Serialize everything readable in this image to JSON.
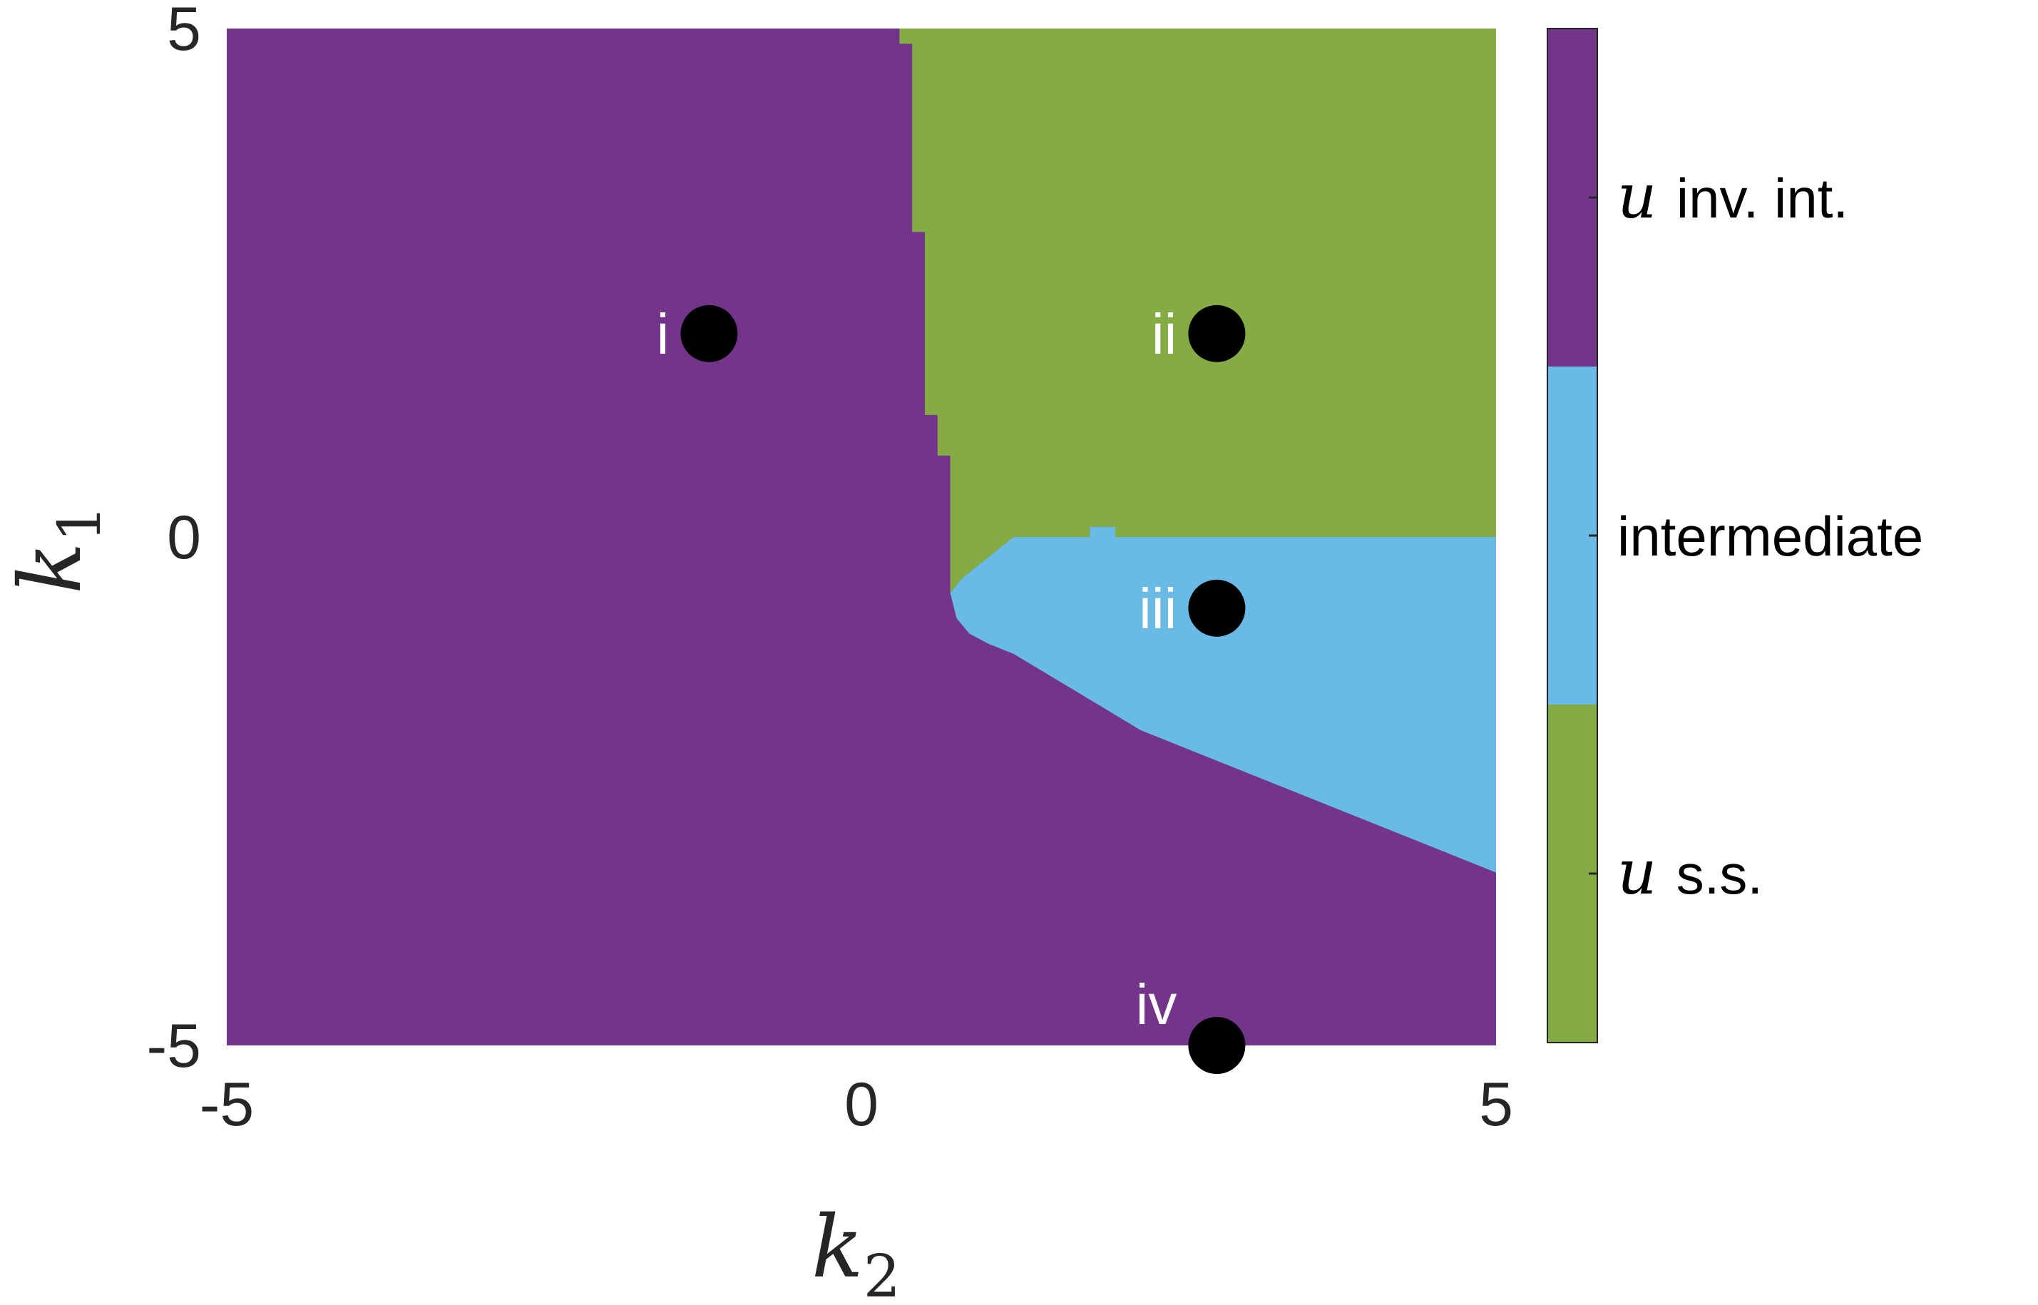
{
  "chart_data": {
    "type": "heatmap",
    "title": "",
    "xlabel": {
      "symbol": "k",
      "sub": "2"
    },
    "ylabel": {
      "symbol": "k",
      "sub": "1"
    },
    "xlim": [
      -5,
      5
    ],
    "ylim": [
      -5,
      5
    ],
    "xticks": [
      "-5",
      "0",
      "5"
    ],
    "yticks": [
      "-5",
      "0",
      "5"
    ],
    "regions": [
      {
        "name": "u inv. int.",
        "color": "#72358a"
      },
      {
        "name": "intermediate",
        "color": "#6abae6"
      },
      {
        "name": "u s.s.",
        "color": "#85ab45"
      }
    ],
    "green_boundary": [
      [
        0.3,
        5.0
      ],
      [
        0.3,
        4.85
      ],
      [
        0.4,
        4.85
      ],
      [
        0.4,
        3.0
      ],
      [
        0.5,
        3.0
      ],
      [
        0.5,
        1.2
      ],
      [
        0.6,
        1.2
      ],
      [
        0.6,
        0.8
      ],
      [
        0.7,
        0.8
      ],
      [
        0.7,
        -0.55
      ],
      [
        0.7,
        -0.55
      ]
    ],
    "cyan_top_edge": [
      [
        0.7,
        -0.55
      ],
      [
        0.8,
        -0.4
      ],
      [
        0.9,
        -0.3
      ],
      [
        1.0,
        -0.2
      ],
      [
        1.1,
        -0.1
      ],
      [
        1.2,
        0.0
      ],
      [
        1.8,
        0.0
      ],
      [
        1.8,
        0.1
      ],
      [
        2.0,
        0.1
      ],
      [
        2.0,
        0.0
      ],
      [
        5.0,
        0.0
      ]
    ],
    "cyan_bottom_edge": [
      [
        0.7,
        -0.55
      ],
      [
        0.75,
        -0.8
      ],
      [
        0.85,
        -0.95
      ],
      [
        1.0,
        -1.05
      ],
      [
        1.2,
        -1.15
      ],
      [
        1.4,
        -1.3
      ],
      [
        1.6,
        -1.45
      ],
      [
        1.8,
        -1.6
      ],
      [
        2.0,
        -1.75
      ],
      [
        2.2,
        -1.9
      ],
      [
        2.5,
        -2.05
      ],
      [
        2.8,
        -2.2
      ],
      [
        3.1,
        -2.35
      ],
      [
        3.4,
        -2.5
      ],
      [
        3.7,
        -2.65
      ],
      [
        4.0,
        -2.8
      ],
      [
        4.3,
        -2.95
      ],
      [
        4.6,
        -3.1
      ],
      [
        4.9,
        -3.25
      ],
      [
        5.0,
        -3.3
      ]
    ],
    "points": [
      {
        "label": "i",
        "k2": -1.2,
        "k1": 2.0,
        "label_side": "left"
      },
      {
        "label": "ii",
        "k2": 2.8,
        "k1": 2.0,
        "label_side": "left"
      },
      {
        "label": "iii",
        "k2": 2.8,
        "k1": -0.7,
        "label_side": "left"
      },
      {
        "label": "iv",
        "k2": 2.8,
        "k1": -5.0,
        "label_side": "above-left"
      }
    ],
    "colorbar": {
      "labels": [
        {
          "symbol": "u",
          "text": "inv. int."
        },
        {
          "symbol": "",
          "text": "intermediate"
        },
        {
          "symbol": "u",
          "text": "s.s."
        }
      ]
    }
  }
}
